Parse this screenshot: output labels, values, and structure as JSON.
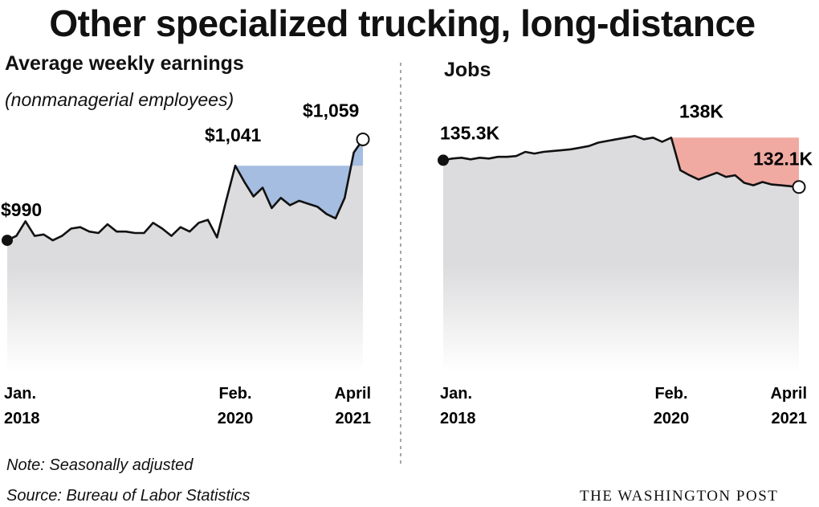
{
  "title": "Other specialized trucking, long-distance",
  "footer": {
    "note": "Note: Seasonally adjusted",
    "source": "Source: Bureau of Labor Statistics",
    "brand": "THE WASHINGTON POST"
  },
  "colors": {
    "area_gray": "#dcdcde",
    "earnings_gain": "#a4bde0",
    "jobs_loss": "#f0aaa2",
    "line": "#111111"
  },
  "chart_data": [
    {
      "type": "line",
      "title": "Average weekly earnings",
      "subtitle": "(nonmanagerial employees)",
      "unit": "USD per week",
      "x": [
        "2018-01",
        "2018-02",
        "2018-03",
        "2018-04",
        "2018-05",
        "2018-06",
        "2018-07",
        "2018-08",
        "2018-09",
        "2018-10",
        "2018-11",
        "2018-12",
        "2019-01",
        "2019-02",
        "2019-03",
        "2019-04",
        "2019-05",
        "2019-06",
        "2019-07",
        "2019-08",
        "2019-09",
        "2019-10",
        "2019-11",
        "2019-12",
        "2020-01",
        "2020-02",
        "2020-03",
        "2020-04",
        "2020-05",
        "2020-06",
        "2020-07",
        "2020-08",
        "2020-09",
        "2020-10",
        "2020-11",
        "2020-12",
        "2021-01",
        "2021-02",
        "2021-03",
        "2021-04"
      ],
      "values": [
        990,
        993,
        1003,
        993,
        994,
        990,
        993,
        998,
        999,
        996,
        995,
        1001,
        996,
        996,
        995,
        995,
        1002,
        998,
        993,
        999,
        996,
        1002,
        1004,
        992,
        1017,
        1041,
        1030,
        1020,
        1026,
        1012,
        1019,
        1014,
        1017,
        1015,
        1013,
        1008,
        1005,
        1019,
        1050,
        1059
      ],
      "baseline_ref": {
        "from": "2020-02",
        "value": 1041
      },
      "annotations": [
        {
          "x": "2018-01",
          "label": "$990"
        },
        {
          "x": "2020-02",
          "label": "$1,041"
        },
        {
          "x": "2021-04",
          "label": "$1,059"
        }
      ],
      "x_ticks": [
        {
          "x": "2018-01",
          "line1": "Jan.",
          "line2": "2018"
        },
        {
          "x": "2020-02",
          "line1": "Feb.",
          "line2": "2020"
        },
        {
          "x": "2021-04",
          "line1": "April",
          "line2": "2021"
        }
      ],
      "ylim": [
        900,
        1062
      ]
    },
    {
      "type": "line",
      "title": "Jobs",
      "unit": "thousands",
      "x": [
        "2018-01",
        "2018-02",
        "2018-03",
        "2018-04",
        "2018-05",
        "2018-06",
        "2018-07",
        "2018-08",
        "2018-09",
        "2018-10",
        "2018-11",
        "2018-12",
        "2019-01",
        "2019-02",
        "2019-03",
        "2019-04",
        "2019-05",
        "2019-06",
        "2019-07",
        "2019-08",
        "2019-09",
        "2019-10",
        "2019-11",
        "2019-12",
        "2020-01",
        "2020-02",
        "2020-03",
        "2020-04",
        "2020-05",
        "2020-06",
        "2020-07",
        "2020-08",
        "2020-09",
        "2020-10",
        "2020-11",
        "2020-12",
        "2021-01",
        "2021-02",
        "2021-03",
        "2021-04"
      ],
      "values": [
        135.3,
        135.5,
        135.6,
        135.4,
        135.6,
        135.5,
        135.7,
        135.7,
        135.8,
        136.3,
        136.1,
        136.3,
        136.4,
        136.5,
        136.6,
        136.8,
        137.0,
        137.4,
        137.6,
        137.8,
        138.0,
        138.2,
        137.8,
        138.0,
        137.5,
        138.0,
        134.1,
        133.5,
        133.0,
        133.4,
        133.8,
        133.3,
        133.5,
        132.6,
        132.3,
        132.7,
        132.4,
        132.3,
        132.2,
        132.1
      ],
      "baseline_ref": {
        "from": "2020-02",
        "value": 138
      },
      "annotations": [
        {
          "x": "2018-01",
          "label": "135.3K"
        },
        {
          "x": "2020-02",
          "label": "138K"
        },
        {
          "x": "2021-04",
          "label": "132.1K"
        }
      ],
      "x_ticks": [
        {
          "x": "2018-01",
          "line1": "Jan.",
          "line2": "2018"
        },
        {
          "x": "2020-02",
          "line1": "Feb.",
          "line2": "2020"
        },
        {
          "x": "2021-04",
          "line1": "April",
          "line2": "2021"
        }
      ],
      "ylim": [
        110,
        141
      ]
    }
  ]
}
